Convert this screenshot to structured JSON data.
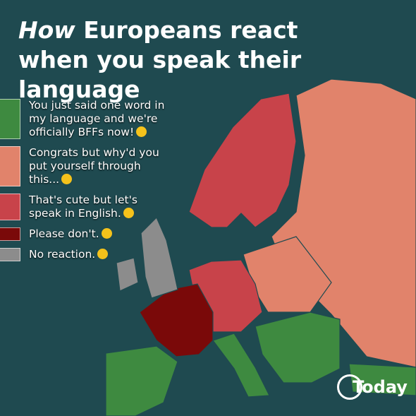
{
  "header": {
    "title_emphasis": "How",
    "title": "Europeans react when you speak their language"
  },
  "legend": [
    {
      "label": "You just said one word in my language and we're officially BFFs now!",
      "color": "#3e8a40"
    },
    {
      "label": "Congrats but why'd you put yourself through this...",
      "color": "#e1836b"
    },
    {
      "label": "That's cute but let's speak in English.",
      "color": "#c8434a"
    },
    {
      "label": "Please don't.",
      "color": "#7a0909"
    },
    {
      "label": "No reaction.",
      "color": "#8c8c8c"
    }
  ],
  "logo": "Today"
}
